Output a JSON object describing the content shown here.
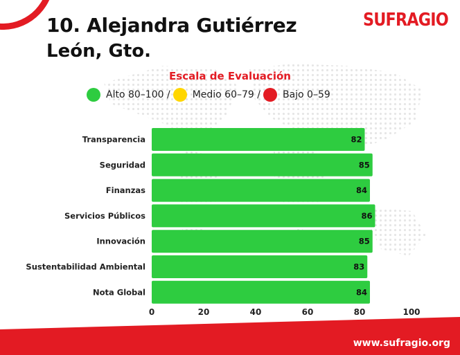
{
  "header": {
    "title": "10. Alejandra Gutiérrez",
    "subtitle": "León, Gto.",
    "logo": "SUFRAGIO"
  },
  "scale": {
    "title": "Escala de Evaluación",
    "items": [
      {
        "label": "Alto 80–100 /",
        "color": "#2ecc40"
      },
      {
        "label": "Medio 60–79 /",
        "color": "#ffd600"
      },
      {
        "label": "Bajo 0–59",
        "color": "#e31b23"
      }
    ]
  },
  "chart_data": {
    "type": "bar",
    "orientation": "horizontal",
    "categories": [
      "Transparencia",
      "Seguridad",
      "Finanzas",
      "Servicios Públicos",
      "Innovación",
      "Sustentabilidad Ambiental",
      "Nota Global"
    ],
    "values": [
      82,
      85,
      84,
      86,
      85,
      83,
      84
    ],
    "xlim": [
      0,
      100
    ],
    "xticks": [
      "0",
      "20",
      "40",
      "60",
      "80",
      "100"
    ],
    "bar_color": "#2ecc40",
    "grid": false,
    "legend": "top"
  },
  "footer": {
    "url": "www.sufragio.org"
  }
}
